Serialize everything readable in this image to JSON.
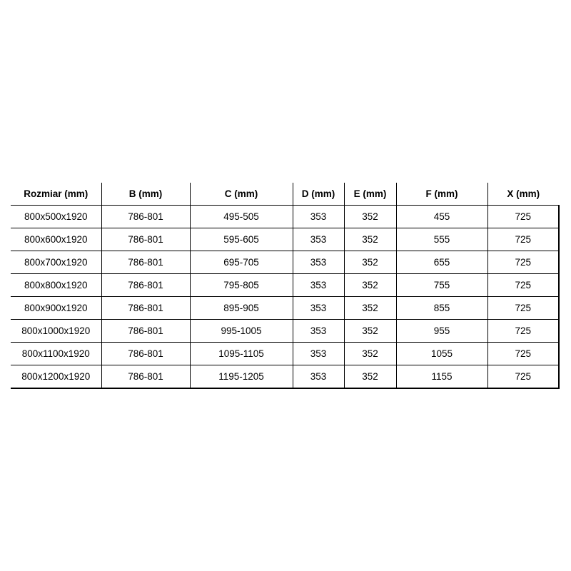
{
  "table": {
    "headers": [
      "Rozmiar (mm)",
      "B (mm)",
      "C (mm)",
      "D (mm)",
      "E (mm)",
      "F (mm)",
      "X (mm)"
    ],
    "rows": [
      [
        "800x500x1920",
        "786-801",
        "495-505",
        "353",
        "352",
        "455",
        "725"
      ],
      [
        "800x600x1920",
        "786-801",
        "595-605",
        "353",
        "352",
        "555",
        "725"
      ],
      [
        "800x700x1920",
        "786-801",
        "695-705",
        "353",
        "352",
        "655",
        "725"
      ],
      [
        "800x800x1920",
        "786-801",
        "795-805",
        "353",
        "352",
        "755",
        "725"
      ],
      [
        "800x900x1920",
        "786-801",
        "895-905",
        "353",
        "352",
        "855",
        "725"
      ],
      [
        "800x1000x1920",
        "786-801",
        "995-1005",
        "353",
        "352",
        "955",
        "725"
      ],
      [
        "800x1100x1920",
        "786-801",
        "1095-1105",
        "353",
        "352",
        "1055",
        "725"
      ],
      [
        "800x1200x1920",
        "786-801",
        "1195-1205",
        "353",
        "352",
        "1155",
        "725"
      ]
    ]
  }
}
